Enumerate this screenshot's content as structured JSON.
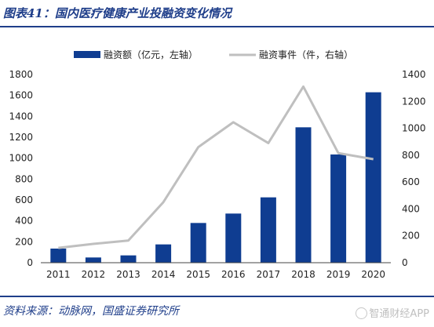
{
  "figure": {
    "title": "图表41：国内医疗健康产业投融资变化情况",
    "source": "资料来源：动脉网，国盛证券研究所",
    "watermark": "智通财经APP"
  },
  "chart_data": {
    "type": "bar",
    "categories": [
      "2011",
      "2012",
      "2013",
      "2014",
      "2015",
      "2016",
      "2017",
      "2018",
      "2019",
      "2020"
    ],
    "series": [
      {
        "name": "融资额（亿元，左轴）",
        "type": "bar",
        "axis": "left",
        "color": "#0f3d91",
        "values": [
          135,
          50,
          70,
          175,
          380,
          470,
          625,
          1295,
          1035,
          1630
        ]
      },
      {
        "name": "融资事件（件，右轴）",
        "type": "line",
        "axis": "right",
        "color": "#bfbfbf",
        "values": [
          110,
          140,
          165,
          450,
          860,
          1045,
          890,
          1310,
          815,
          770
        ]
      }
    ],
    "left_axis": {
      "min": 0,
      "max": 1800,
      "step": 200
    },
    "right_axis": {
      "min": 0,
      "max": 1400,
      "step": 200
    },
    "legend_position": "top",
    "grid": false
  }
}
